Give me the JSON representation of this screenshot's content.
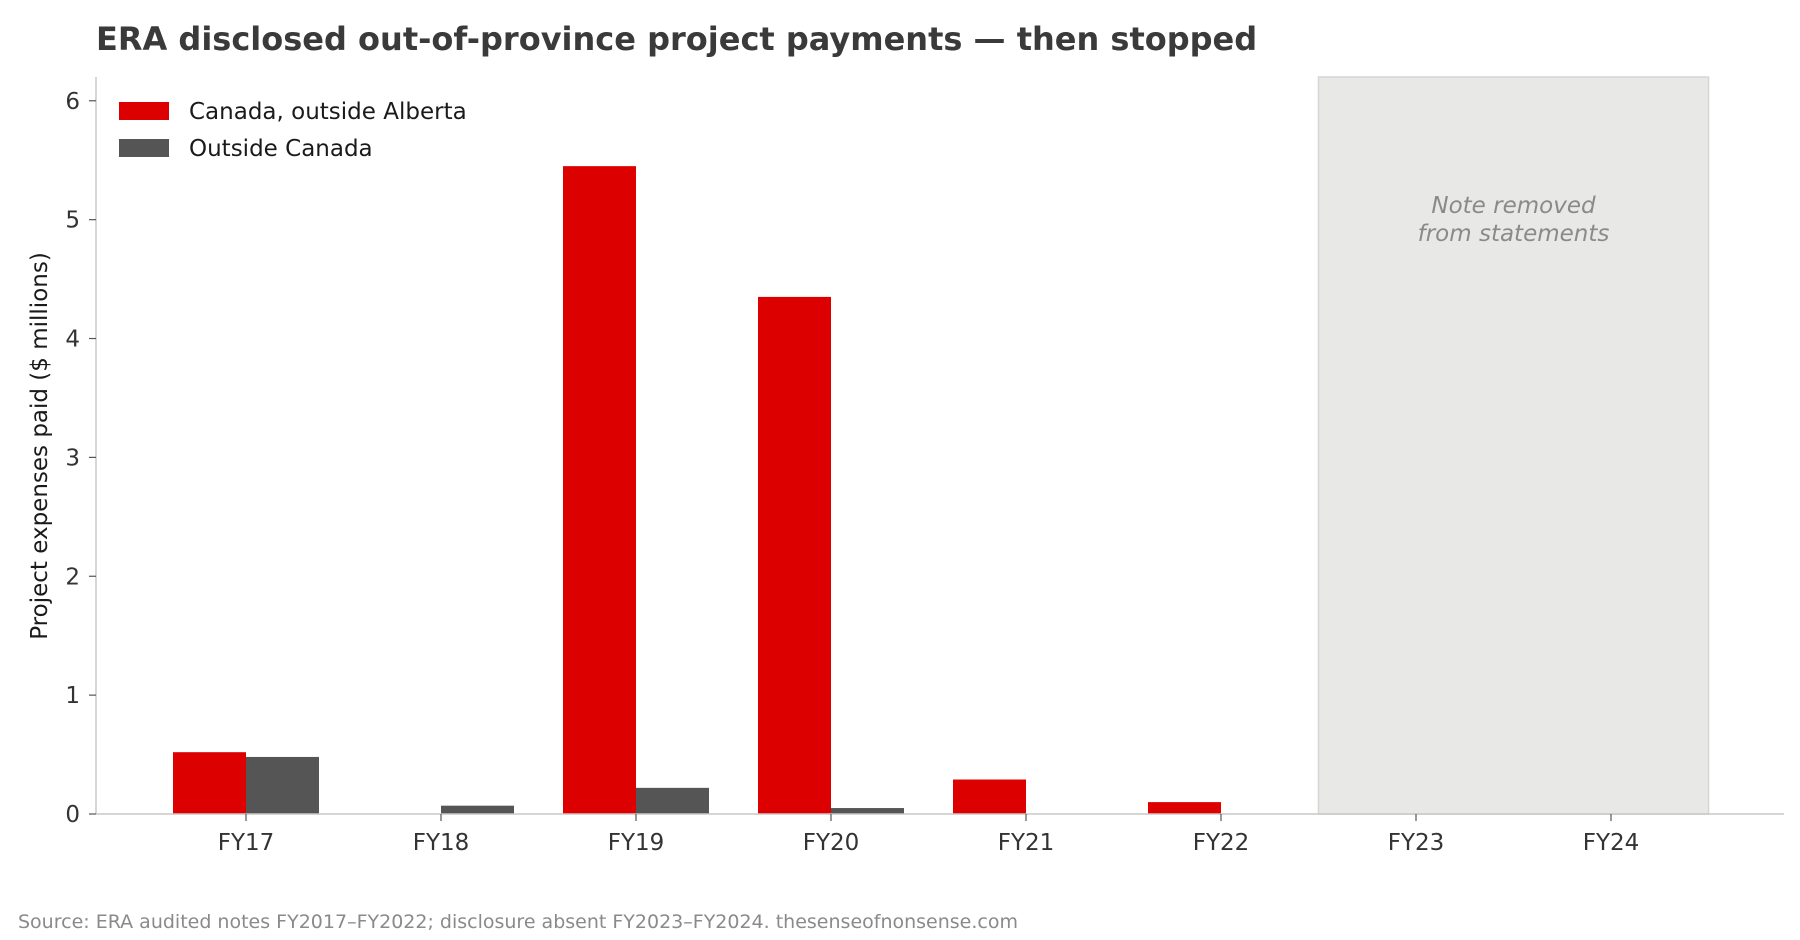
{
  "chart_data": {
    "type": "bar",
    "title": "ERA disclosed out-of-province project payments — then stopped",
    "xlabel": "",
    "ylabel": "Project expenses paid ($ millions)",
    "categories": [
      "FY17",
      "FY18",
      "FY19",
      "FY20",
      "FY21",
      "FY22",
      "FY23",
      "FY24"
    ],
    "series": [
      {
        "name": "Canada, outside Alberta",
        "color": "#dd0000",
        "values": [
          0.52,
          0,
          5.45,
          4.35,
          0.29,
          0.1,
          null,
          null
        ]
      },
      {
        "name": "Outside Canada",
        "color": "#555555",
        "values": [
          0.48,
          0.07,
          0.22,
          0.05,
          0,
          0,
          null,
          null
        ]
      }
    ],
    "ylim": [
      0,
      6.2
    ],
    "yticks": [
      0,
      1,
      2,
      3,
      4,
      5,
      6
    ],
    "legend_position": "top-left",
    "grid": false,
    "shaded_region": {
      "categories": [
        "FY23",
        "FY24"
      ],
      "label_lines": [
        "Note removed",
        "from statements"
      ],
      "color": "#e8e8e6"
    },
    "source_note": "Source: ERA audited notes FY2017–FY2022; disclosure absent FY2023–FY2024. thesenseofnonsense.com"
  }
}
